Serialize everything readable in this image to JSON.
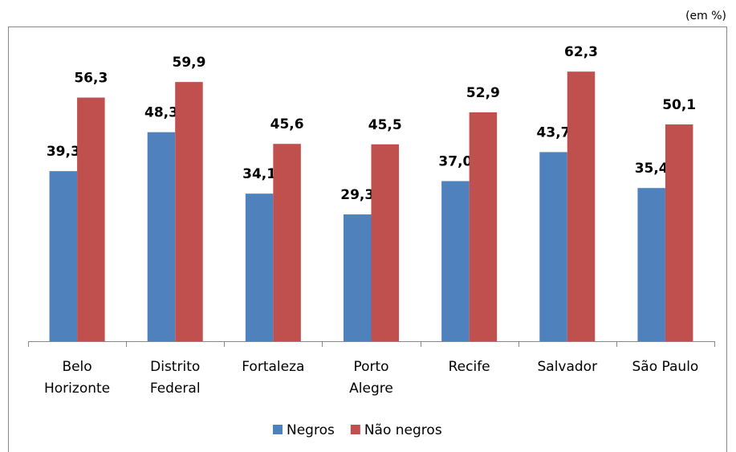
{
  "chart_data": {
    "type": "bar",
    "unit_note": "(em %)",
    "categories": [
      "Belo Horizonte",
      "Distrito Federal",
      "Fortaleza",
      "Porto Alegre",
      "Recife",
      "Salvador",
      "São Paulo"
    ],
    "series": [
      {
        "name": "Negros",
        "color": "#4f81bd",
        "values": [
          39.3,
          48.3,
          34.1,
          29.3,
          37.0,
          43.7,
          35.4
        ],
        "value_labels": [
          "39,3",
          "48,3",
          "34,1",
          "29,3",
          "37,0",
          "43,7",
          "35,4"
        ]
      },
      {
        "name": "Não negros",
        "color": "#c0504d",
        "values": [
          56.3,
          59.9,
          45.6,
          45.5,
          52.9,
          62.3,
          50.1
        ],
        "value_labels": [
          "56,3",
          "59,9",
          "45,6",
          "45,5",
          "52,9",
          "62,3",
          "50,1"
        ]
      }
    ]
  }
}
